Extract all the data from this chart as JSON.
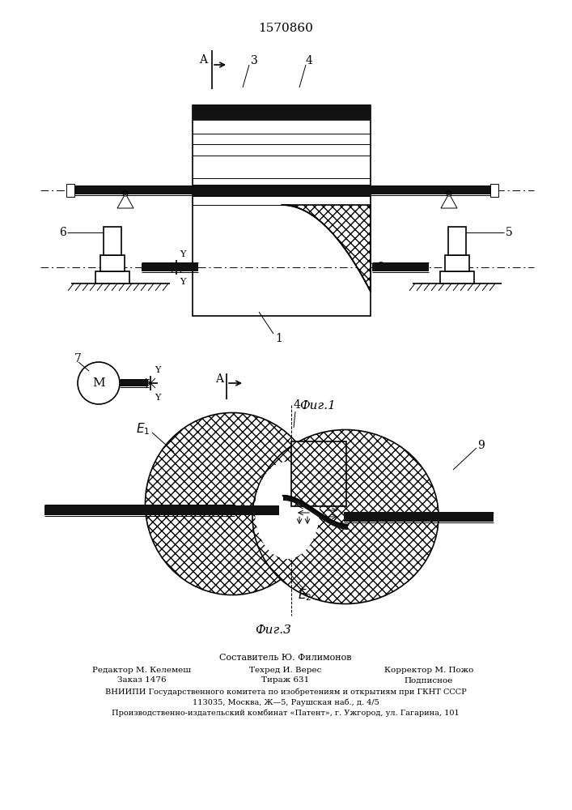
{
  "title": "1570860",
  "bg_color": "#ffffff",
  "line_color": "#000000",
  "fig1_label": "Фиг.1",
  "fig3_label": "Фиг.3",
  "footer_lines": [
    "Составитель Ю. Филимонов",
    "Редактор М. Келемеш",
    "Техред И. Верес",
    "Корректор М. Пожо",
    "Заказ 1476",
    "Тираж 631",
    "Подписное",
    "ВНИИПИ Государственного комитета по изобретениям и открытиям при ГКНТ СССР",
    "113035, Москва, Ж—5, Раушская наб., д. 4/5",
    "Производственно-издательский комбинат «Патент», г. Ужгород, ул. Гагарина, 101"
  ]
}
